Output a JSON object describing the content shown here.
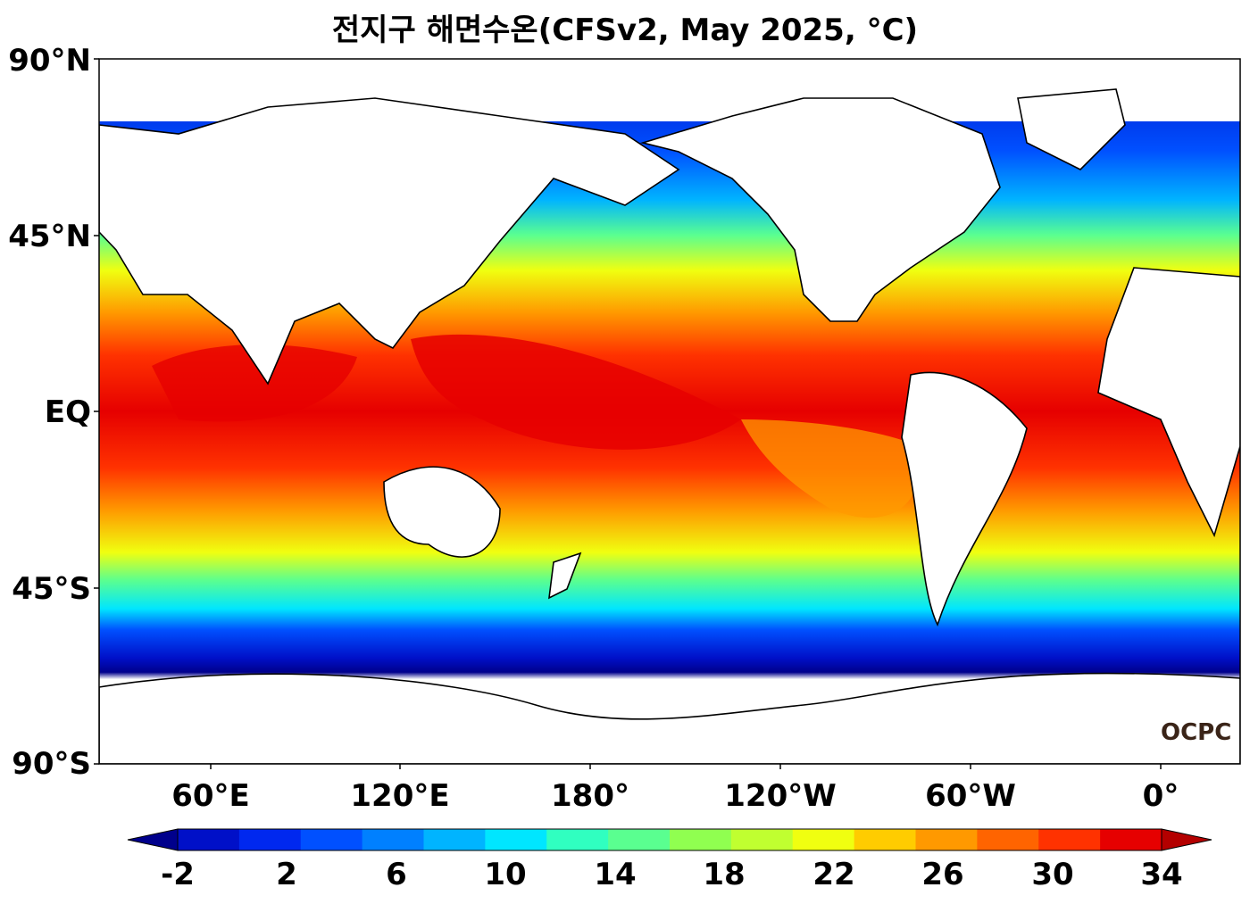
{
  "title": "전지구 해면수온(CFSv2, May 2025, °C)",
  "lat_labels": [
    "90°N",
    "45°N",
    "EQ",
    "45°S",
    "90°S"
  ],
  "lon_labels": [
    "60°E",
    "120°E",
    "180°",
    "120°W",
    "60°W",
    "0°"
  ],
  "colorbar": {
    "min": -2,
    "max": 34,
    "step": 2,
    "tick_labels": [
      "-2",
      "2",
      "6",
      "10",
      "14",
      "18",
      "22",
      "26",
      "30",
      "34"
    ],
    "colors": [
      "#00008c",
      "#0010c8",
      "#0028ef",
      "#0050ff",
      "#0080ff",
      "#00b4ff",
      "#00e6ff",
      "#30ffc0",
      "#5aff90",
      "#90ff50",
      "#c0ff30",
      "#f0ff10",
      "#ffcc00",
      "#ff9900",
      "#ff6400",
      "#ff3200",
      "#e60000",
      "#b40000"
    ]
  },
  "logo_text": "OCPC"
}
